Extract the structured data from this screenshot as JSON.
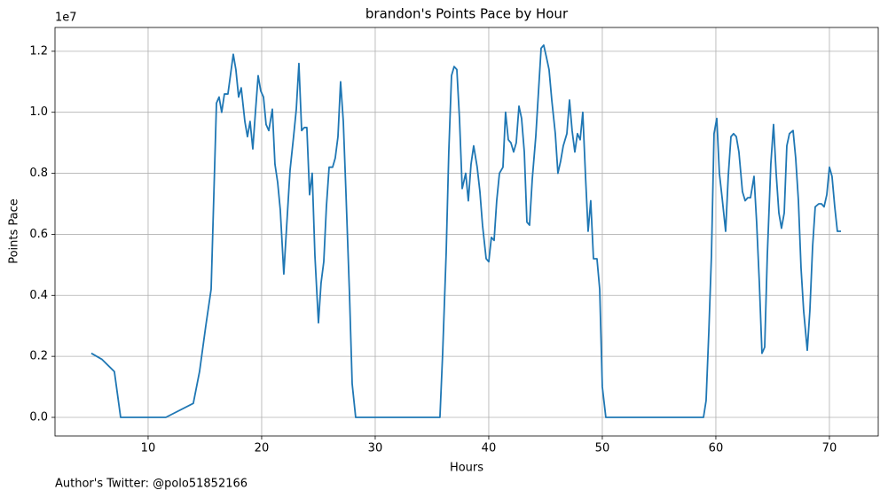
{
  "chart_data": {
    "type": "line",
    "title": "brandon's Points Pace by Hour",
    "x_label": "Hours",
    "y_label": "Points Pace",
    "y_offset_label": "1e7",
    "footnote": "Author's Twitter: @polo51852166",
    "color": "#1f77b4",
    "grid": true,
    "xlim": [
      1.8,
      74.3
    ],
    "ylim": [
      -0.061,
      1.278
    ],
    "xticks": [
      10,
      20,
      30,
      40,
      50,
      60,
      70
    ],
    "yticks": [
      {
        "value": 0,
        "label": "0.0"
      },
      {
        "value": 0.2,
        "label": "0.2"
      },
      {
        "value": 0.4,
        "label": "0.4"
      },
      {
        "value": 0.6,
        "label": "0.6"
      },
      {
        "value": 0.8,
        "label": "0.8"
      },
      {
        "value": 1,
        "label": "1.0"
      },
      {
        "value": 1.2,
        "label": "1.2"
      }
    ],
    "x": [
      5.0,
      5.94,
      7.03,
      7.58,
      11.56,
      13.98,
      14.53,
      15.08,
      15.55,
      16.02,
      16.25,
      16.48,
      16.72,
      17.03,
      17.5,
      17.73,
      17.97,
      18.2,
      18.52,
      18.75,
      18.98,
      19.22,
      19.45,
      19.69,
      19.92,
      20.16,
      20.39,
      20.63,
      20.94,
      21.17,
      21.41,
      21.64,
      21.95,
      22.19,
      22.5,
      22.81,
      23.05,
      23.28,
      23.52,
      23.75,
      23.98,
      24.22,
      24.45,
      24.69,
      25.0,
      25.23,
      25.47,
      25.7,
      25.94,
      26.25,
      26.48,
      26.72,
      26.95,
      27.19,
      27.42,
      27.73,
      27.97,
      28.28,
      35.7,
      35.94,
      36.25,
      36.48,
      36.72,
      36.95,
      37.19,
      37.42,
      37.66,
      37.97,
      38.2,
      38.44,
      38.67,
      38.98,
      39.22,
      39.45,
      39.77,
      40.0,
      40.23,
      40.47,
      40.7,
      40.94,
      41.25,
      41.48,
      41.72,
      41.95,
      42.19,
      42.42,
      42.66,
      42.89,
      43.13,
      43.36,
      43.59,
      43.83,
      44.14,
      44.61,
      44.84,
      45.08,
      45.31,
      45.55,
      45.86,
      46.09,
      46.33,
      46.56,
      46.88,
      47.11,
      47.34,
      47.58,
      47.81,
      48.05,
      48.28,
      48.52,
      48.75,
      48.98,
      49.22,
      49.53,
      49.77,
      50.0,
      50.31,
      58.91,
      59.14,
      59.38,
      59.61,
      59.84,
      60.08,
      60.31,
      60.55,
      60.86,
      61.09,
      61.33,
      61.56,
      61.8,
      62.03,
      62.34,
      62.58,
      62.81,
      63.05,
      63.36,
      63.59,
      63.83,
      64.06,
      64.3,
      64.53,
      64.84,
      65.08,
      65.31,
      65.55,
      65.78,
      66.02,
      66.25,
      66.48,
      66.8,
      67.03,
      67.27,
      67.5,
      67.73,
      68.05,
      68.28,
      68.52,
      68.75,
      69.06,
      69.3,
      69.53,
      69.77,
      70.0,
      70.23,
      70.47,
      70.7,
      71.02
    ],
    "values": [
      0.21,
      0.19,
      0.15,
      0,
      0,
      0.046,
      0.15,
      0.3,
      0.42,
      1.03,
      1.05,
      1.0,
      1.06,
      1.06,
      1.19,
      1.14,
      1.05,
      1.08,
      0.97,
      0.92,
      0.97,
      0.88,
      1.0,
      1.12,
      1.07,
      1.05,
      0.96,
      0.94,
      1.01,
      0.83,
      0.77,
      0.68,
      0.47,
      0.62,
      0.81,
      0.92,
      1.01,
      1.16,
      0.94,
      0.95,
      0.95,
      0.73,
      0.8,
      0.53,
      0.31,
      0.44,
      0.51,
      0.69,
      0.82,
      0.82,
      0.85,
      0.92,
      1.1,
      0.97,
      0.74,
      0.41,
      0.11,
      0,
      0,
      0.21,
      0.54,
      0.87,
      1.12,
      1.15,
      1.14,
      0.98,
      0.75,
      0.8,
      0.71,
      0.83,
      0.89,
      0.82,
      0.74,
      0.63,
      0.52,
      0.51,
      0.59,
      0.58,
      0.71,
      0.8,
      0.82,
      1.0,
      0.91,
      0.9,
      0.87,
      0.9,
      1.02,
      0.98,
      0.87,
      0.64,
      0.63,
      0.78,
      0.92,
      1.21,
      1.22,
      1.18,
      1.14,
      1.04,
      0.93,
      0.8,
      0.84,
      0.89,
      0.93,
      1.04,
      0.94,
      0.87,
      0.93,
      0.91,
      1.0,
      0.79,
      0.61,
      0.71,
      0.52,
      0.52,
      0.42,
      0.1,
      0,
      0,
      0.055,
      0.28,
      0.53,
      0.93,
      0.98,
      0.8,
      0.72,
      0.61,
      0.79,
      0.92,
      0.93,
      0.92,
      0.87,
      0.74,
      0.71,
      0.72,
      0.72,
      0.79,
      0.64,
      0.44,
      0.21,
      0.23,
      0.53,
      0.83,
      0.96,
      0.8,
      0.67,
      0.62,
      0.67,
      0.89,
      0.93,
      0.94,
      0.85,
      0.71,
      0.49,
      0.35,
      0.22,
      0.35,
      0.56,
      0.69,
      0.7,
      0.7,
      0.69,
      0.73,
      0.82,
      0.79,
      0.69,
      0.61,
      0.61
    ]
  }
}
